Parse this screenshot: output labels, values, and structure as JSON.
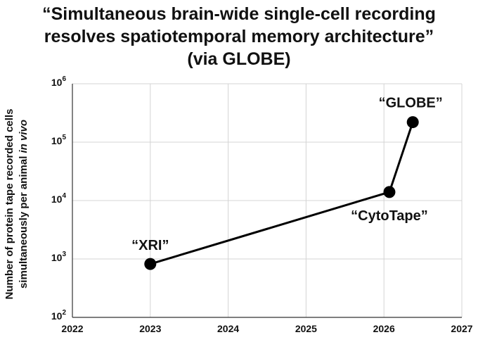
{
  "chart_data": {
    "type": "line",
    "title_lines": [
      "“Simultaneous brain-wide single-cell recording",
      "resolves spatiotemporal memory architecture”",
      "(via GLOBE)"
    ],
    "ylabel_line1": "Number of protein tape recorded cells",
    "ylabel_line2_main": "simultaneously per animal ",
    "ylabel_line2_italic": "in vivo",
    "xlim": [
      2022,
      2027
    ],
    "x_ticks": [
      "2022",
      "2023",
      "2024",
      "2025",
      "2026",
      "2027"
    ],
    "y_scale": "log",
    "ylim": [
      100,
      1000000
    ],
    "y_ticks": [
      {
        "base": "10",
        "exp": "2",
        "value": 100
      },
      {
        "base": "10",
        "exp": "3",
        "value": 1000
      },
      {
        "base": "10",
        "exp": "4",
        "value": 10000
      },
      {
        "base": "10",
        "exp": "5",
        "value": 100000
      },
      {
        "base": "10",
        "exp": "6",
        "value": 1000000
      }
    ],
    "grid": true,
    "series": [
      {
        "points": [
          {
            "x": 2023.0,
            "y": 820,
            "label": "“XRI”"
          },
          {
            "x": 2026.07,
            "y": 14000,
            "label": "“CytoTape”"
          },
          {
            "x": 2026.37,
            "y": 220000,
            "label": "“GLOBE”"
          }
        ]
      }
    ]
  }
}
